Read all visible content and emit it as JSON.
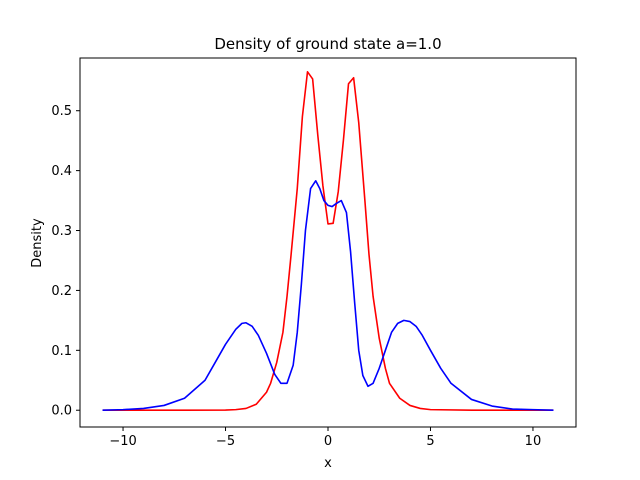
{
  "chart_data": {
    "type": "line",
    "title": "Density of ground state a=1.0",
    "xlabel": "x",
    "ylabel": "Density",
    "xlim": [
      -12.1,
      12.1
    ],
    "ylim": [
      -0.028,
      0.588
    ],
    "xticks": [
      -10,
      -5,
      0,
      5,
      10
    ],
    "xtick_labels": [
      "−10",
      "−5",
      "0",
      "5",
      "10"
    ],
    "yticks": [
      0.0,
      0.1,
      0.2,
      0.3,
      0.4,
      0.5
    ],
    "ytick_labels": [
      "0.0",
      "0.1",
      "0.2",
      "0.3",
      "0.4",
      "0.5"
    ],
    "grid": false,
    "legend": "none",
    "series": [
      {
        "color": "#ff0000",
        "x": [
          -11.0,
          -9.0,
          -7.0,
          -5.0,
          -4.5,
          -4.0,
          -3.5,
          -3.0,
          -2.8,
          -2.5,
          -2.2,
          -2.0,
          -1.8,
          -1.5,
          -1.25,
          -1.0,
          -0.75,
          -0.5,
          -0.25,
          0.0,
          0.25,
          0.5,
          0.75,
          1.0,
          1.25,
          1.5,
          1.8,
          2.0,
          2.2,
          2.5,
          2.8,
          3.0,
          3.5,
          4.0,
          4.5,
          5.0,
          7.0,
          9.0,
          11.0
        ],
        "y": [
          0.0,
          0.0,
          0.0,
          0.0002,
          0.001,
          0.003,
          0.01,
          0.03,
          0.045,
          0.08,
          0.13,
          0.19,
          0.26,
          0.37,
          0.49,
          0.565,
          0.553,
          0.46,
          0.375,
          0.311,
          0.312,
          0.365,
          0.45,
          0.545,
          0.555,
          0.48,
          0.35,
          0.26,
          0.19,
          0.12,
          0.07,
          0.045,
          0.02,
          0.008,
          0.003,
          0.001,
          0.0,
          0.0,
          0.0
        ]
      },
      {
        "color": "#0000ff",
        "x": [
          -11.0,
          -10.0,
          -9.0,
          -8.0,
          -7.0,
          -6.0,
          -5.5,
          -5.0,
          -4.5,
          -4.2,
          -4.0,
          -3.7,
          -3.4,
          -3.0,
          -2.6,
          -2.3,
          -2.0,
          -1.7,
          -1.5,
          -1.3,
          -1.1,
          -0.85,
          -0.6,
          -0.4,
          -0.2,
          0.0,
          0.2,
          0.4,
          0.65,
          0.9,
          1.1,
          1.3,
          1.5,
          1.7,
          1.95,
          2.2,
          2.5,
          2.8,
          3.1,
          3.4,
          3.7,
          4.0,
          4.3,
          4.6,
          5.0,
          5.5,
          6.0,
          7.0,
          8.0,
          9.0,
          10.0,
          11.0
        ],
        "y": [
          0.0,
          0.001,
          0.003,
          0.008,
          0.02,
          0.05,
          0.08,
          0.11,
          0.135,
          0.145,
          0.146,
          0.14,
          0.125,
          0.095,
          0.06,
          0.045,
          0.045,
          0.075,
          0.13,
          0.21,
          0.3,
          0.37,
          0.383,
          0.37,
          0.35,
          0.342,
          0.34,
          0.345,
          0.35,
          0.33,
          0.265,
          0.18,
          0.1,
          0.058,
          0.04,
          0.045,
          0.07,
          0.1,
          0.13,
          0.145,
          0.15,
          0.148,
          0.14,
          0.125,
          0.1,
          0.07,
          0.045,
          0.018,
          0.007,
          0.002,
          0.001,
          0.0
        ]
      }
    ]
  }
}
